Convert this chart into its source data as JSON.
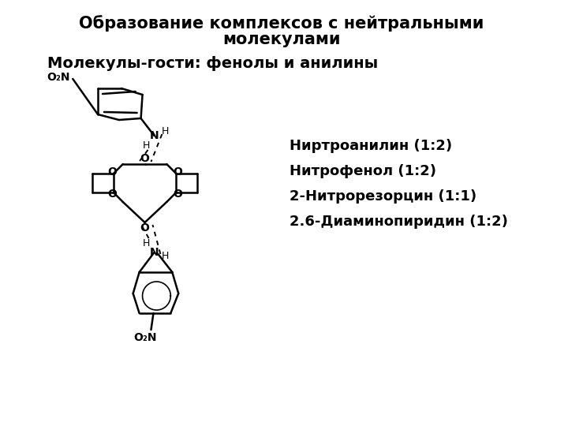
{
  "title_line1": "Образование комплексов с нейтральными",
  "title_line2": "молекулами",
  "subtitle": "Молекулы-гости: фенолы и анилины",
  "list_items": [
    "Ниртроанилин (1:2)",
    "Нитрофенол (1:2)",
    "2-Нитрорезорцин (1:1)",
    "2.6-Диаминопиридин (1:2)"
  ],
  "bg_color": "#ffffff",
  "text_color": "#000000",
  "title_fontsize": 15,
  "subtitle_fontsize": 14,
  "list_fontsize": 13,
  "struct_lw": 1.8,
  "struct_color": "#000000"
}
